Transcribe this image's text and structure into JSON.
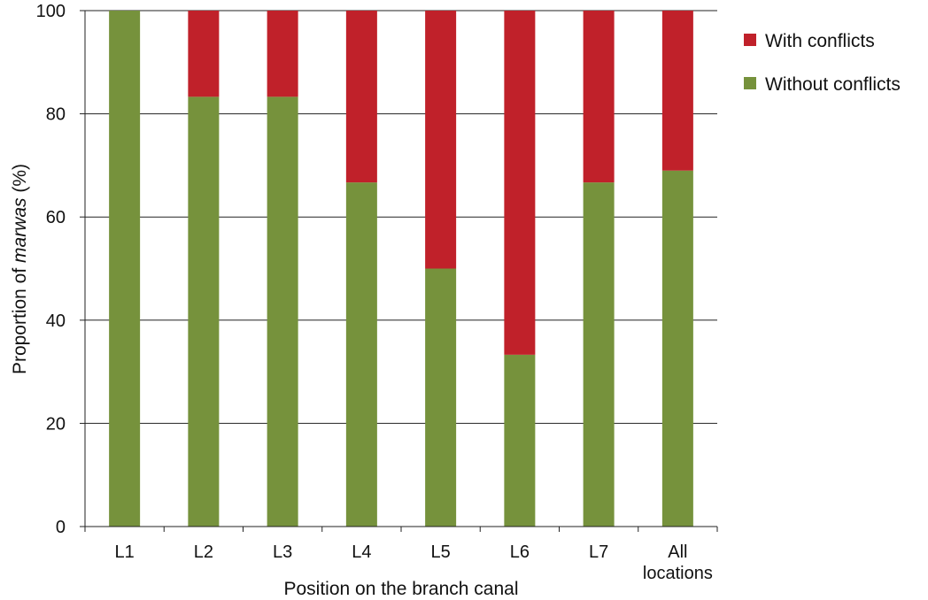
{
  "chart_data": {
    "type": "bar",
    "stacked": true,
    "categories": [
      [
        "L1"
      ],
      [
        "L2"
      ],
      [
        "L3"
      ],
      [
        "L4"
      ],
      [
        "L5"
      ],
      [
        "L6"
      ],
      [
        "L7"
      ],
      [
        "All",
        "locations"
      ]
    ],
    "series": [
      {
        "name": "Without conflicts",
        "color": "#76923c",
        "values": [
          100,
          83.3,
          83.3,
          66.7,
          50,
          33.3,
          66.7,
          69
        ]
      },
      {
        "name": "With conflicts",
        "color": "#c0212a",
        "values": [
          0,
          16.7,
          16.7,
          33.3,
          50,
          66.7,
          33.3,
          31
        ]
      }
    ],
    "xlabel": "Position on the branch canal",
    "ylabel_prefix": "Proportion of ",
    "ylabel_italic": "marwas",
    "ylabel_suffix": " (%)",
    "ylim": [
      0,
      100
    ],
    "yticks": [
      0,
      20,
      40,
      60,
      80,
      100
    ],
    "grid": "horizontal",
    "legend": {
      "position": "top-right",
      "order": [
        "With conflicts",
        "Without conflicts"
      ]
    }
  }
}
